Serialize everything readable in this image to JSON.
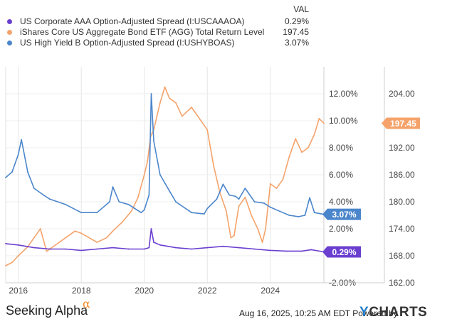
{
  "legend": {
    "header": "VAL",
    "items": [
      {
        "name": "US Corporate AAA Option-Adjusted Spread (I:USCAAAOA)",
        "value": "0.29%",
        "color": "#6a3fcf"
      },
      {
        "name": "iShares Core US Aggregate Bond ETF (AGG) Total Return Level",
        "value": "197.45",
        "color": "#f5a36b"
      },
      {
        "name": "US High Yield B Option-Adjusted Spread (I:USHYBOAS)",
        "value": "3.07%",
        "color": "#4b86cc"
      }
    ]
  },
  "chart_data": {
    "type": "line",
    "x_ticks": [
      2016,
      2018,
      2020,
      2022,
      2024
    ],
    "x_tick_labels": [
      "2016",
      "2018",
      "2020",
      "2022",
      "2024"
    ],
    "xlim": [
      2015.6,
      2025.7
    ],
    "y_left": {
      "range": [
        -2,
        14
      ],
      "ticks": [
        -2,
        0,
        2,
        4,
        6,
        8,
        10,
        12
      ],
      "tick_labels": [
        "-2.00%",
        "",
        "2.00%",
        "4.00%",
        "6.00%",
        "8.00%",
        "10.00%",
        "12.00%"
      ]
    },
    "y_right": {
      "range": [
        162,
        210
      ],
      "ticks": [
        162,
        168,
        174,
        180,
        186,
        192,
        198,
        204
      ],
      "tick_labels": [
        "162.00",
        "168.00",
        "174.00",
        "180.00",
        "186.00",
        "192.00",
        "198.00",
        "204.00"
      ]
    },
    "series": [
      {
        "name": "US Corporate AAA Option-Adjusted Spread (I:USCAAAOA)",
        "axis": "left",
        "color": "#6a3fcf",
        "end_label": "0.29%",
        "points": [
          [
            2015.6,
            0.9
          ],
          [
            2016.0,
            0.8
          ],
          [
            2016.5,
            0.6
          ],
          [
            2017.0,
            0.5
          ],
          [
            2017.5,
            0.5
          ],
          [
            2018.0,
            0.4
          ],
          [
            2018.5,
            0.5
          ],
          [
            2019.0,
            0.6
          ],
          [
            2019.5,
            0.5
          ],
          [
            2020.0,
            0.5
          ],
          [
            2020.15,
            0.6
          ],
          [
            2020.22,
            2.0
          ],
          [
            2020.3,
            1.0
          ],
          [
            2020.5,
            0.8
          ],
          [
            2021.0,
            0.6
          ],
          [
            2021.5,
            0.5
          ],
          [
            2022.0,
            0.6
          ],
          [
            2022.5,
            0.7
          ],
          [
            2023.0,
            0.6
          ],
          [
            2023.5,
            0.5
          ],
          [
            2024.0,
            0.4
          ],
          [
            2024.5,
            0.35
          ],
          [
            2025.0,
            0.35
          ],
          [
            2025.3,
            0.45
          ],
          [
            2025.7,
            0.29
          ]
        ]
      },
      {
        "name": "iShares Core US Aggregate Bond ETF (AGG) Total Return Level",
        "axis": "right",
        "color": "#f5a36b",
        "end_label": "197.45",
        "points": [
          [
            2015.6,
            165.8
          ],
          [
            2015.8,
            166.5
          ],
          [
            2016.0,
            168
          ],
          [
            2016.3,
            170
          ],
          [
            2016.5,
            172
          ],
          [
            2016.7,
            174
          ],
          [
            2016.9,
            169
          ],
          [
            2017.0,
            169.5
          ],
          [
            2017.5,
            172
          ],
          [
            2017.8,
            173.5
          ],
          [
            2018.0,
            173
          ],
          [
            2018.5,
            171
          ],
          [
            2018.8,
            172
          ],
          [
            2019.0,
            173.5
          ],
          [
            2019.3,
            175.5
          ],
          [
            2019.6,
            178
          ],
          [
            2019.8,
            181
          ],
          [
            2020.0,
            186
          ],
          [
            2020.1,
            189
          ],
          [
            2020.2,
            194.5
          ],
          [
            2020.3,
            196
          ],
          [
            2020.5,
            202
          ],
          [
            2020.65,
            205.5
          ],
          [
            2020.8,
            203
          ],
          [
            2021.0,
            202
          ],
          [
            2021.2,
            199
          ],
          [
            2021.5,
            201
          ],
          [
            2021.8,
            198
          ],
          [
            2022.0,
            196
          ],
          [
            2022.2,
            188
          ],
          [
            2022.4,
            182
          ],
          [
            2022.6,
            178
          ],
          [
            2022.75,
            172
          ],
          [
            2022.85,
            172.5
          ],
          [
            2023.0,
            179
          ],
          [
            2023.2,
            181
          ],
          [
            2023.4,
            177
          ],
          [
            2023.6,
            174
          ],
          [
            2023.75,
            171
          ],
          [
            2023.85,
            174
          ],
          [
            2024.0,
            184
          ],
          [
            2024.2,
            183
          ],
          [
            2024.4,
            185
          ],
          [
            2024.6,
            190
          ],
          [
            2024.8,
            194
          ],
          [
            2025.0,
            191
          ],
          [
            2025.2,
            192
          ],
          [
            2025.4,
            195
          ],
          [
            2025.55,
            198.5
          ],
          [
            2025.7,
            197.45
          ]
        ]
      },
      {
        "name": "US High Yield B Option-Adjusted Spread (I:USHYBOAS)",
        "axis": "left",
        "color": "#4b86cc",
        "end_label": "3.07%",
        "points": [
          [
            2015.6,
            5.8
          ],
          [
            2015.8,
            6.2
          ],
          [
            2016.0,
            7.5
          ],
          [
            2016.1,
            8.6
          ],
          [
            2016.3,
            6.2
          ],
          [
            2016.5,
            5.0
          ],
          [
            2016.8,
            4.5
          ],
          [
            2017.0,
            4.2
          ],
          [
            2017.5,
            3.8
          ],
          [
            2018.0,
            3.2
          ],
          [
            2018.5,
            3.2
          ],
          [
            2018.9,
            4.0
          ],
          [
            2019.0,
            5.1
          ],
          [
            2019.2,
            4.0
          ],
          [
            2019.5,
            3.8
          ],
          [
            2019.9,
            3.2
          ],
          [
            2020.0,
            3.4
          ],
          [
            2020.15,
            4.5
          ],
          [
            2020.22,
            12.0
          ],
          [
            2020.3,
            8.5
          ],
          [
            2020.5,
            6.0
          ],
          [
            2020.8,
            4.8
          ],
          [
            2021.0,
            4.0
          ],
          [
            2021.5,
            3.2
          ],
          [
            2021.9,
            3.1
          ],
          [
            2022.0,
            3.5
          ],
          [
            2022.3,
            4.2
          ],
          [
            2022.5,
            5.3
          ],
          [
            2022.7,
            4.5
          ],
          [
            2022.9,
            4.4
          ],
          [
            2023.0,
            4.2
          ],
          [
            2023.2,
            5.0
          ],
          [
            2023.5,
            4.0
          ],
          [
            2023.8,
            3.9
          ],
          [
            2024.0,
            3.6
          ],
          [
            2024.3,
            3.3
          ],
          [
            2024.6,
            3.0
          ],
          [
            2024.9,
            2.9
          ],
          [
            2025.1,
            3.0
          ],
          [
            2025.25,
            4.3
          ],
          [
            2025.4,
            3.2
          ],
          [
            2025.7,
            3.07
          ]
        ]
      }
    ]
  },
  "footer": {
    "date": "Aug 16, 2025, 10:25 AM EDT Powered by",
    "brand_mark": "Y",
    "brand": "CHARTS",
    "logo": "Seeking Alpha",
    "logo_mark": "α"
  }
}
